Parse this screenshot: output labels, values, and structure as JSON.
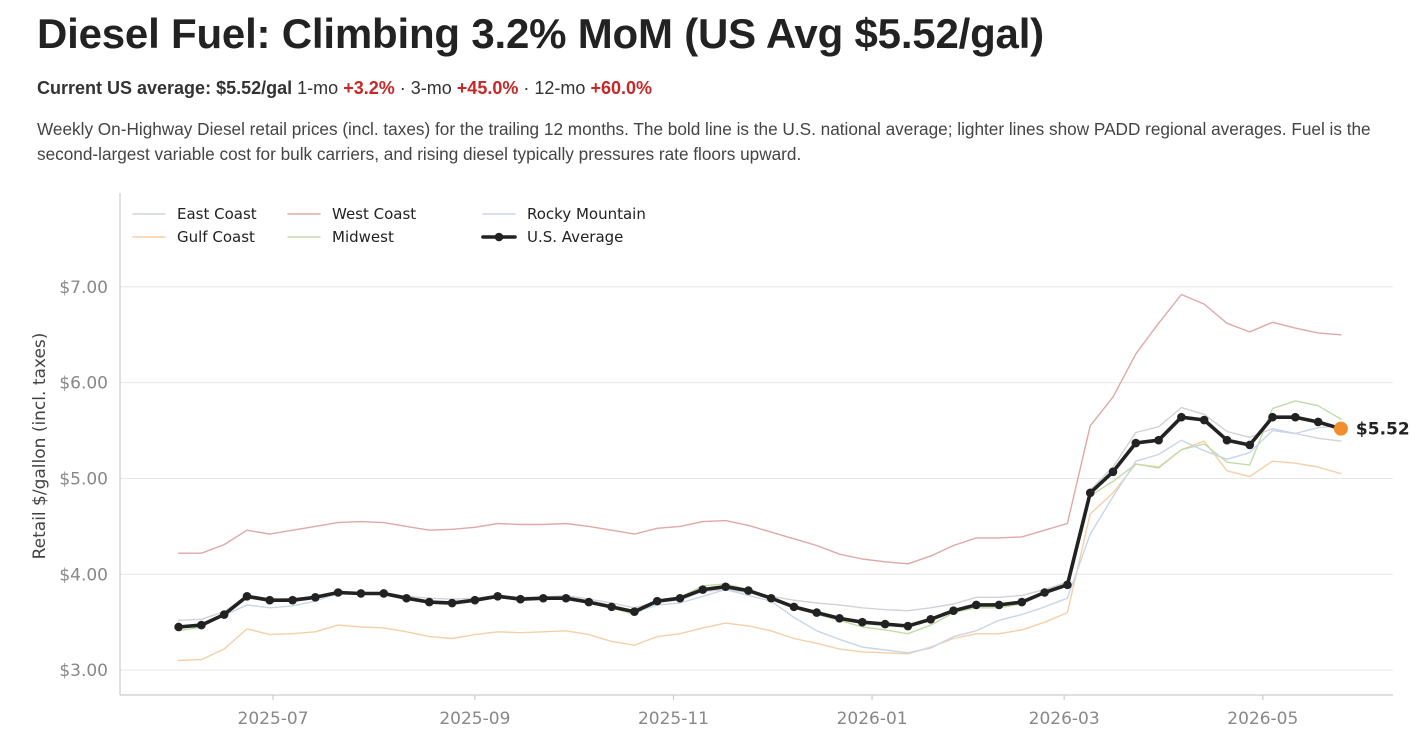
{
  "header": {
    "title": "Diesel Fuel: Climbing 3.2% MoM (US Avg $5.52/gal)",
    "current_label": "Current US average:",
    "current_value": "$5.52/gal",
    "m1_label": "1-mo",
    "m1_value": "+3.2%",
    "sep1": "·",
    "m3_label": "3-mo",
    "m3_value": "+45.0%",
    "sep2": "·",
    "m12_label": "12-mo",
    "m12_value": "+60.0%",
    "description": "Weekly On-Highway Diesel retail prices (incl. taxes) for the trailing 12 months. The bold line is the U.S. national average; lighter lines show PADD regional averages. Fuel is the second-largest variable cost for bulk carriers, and rising diesel typically pressures rate floors upward."
  },
  "colors": {
    "us_average": "#222222",
    "latest_marker": "#f28e2b",
    "up_highlight": "#c62828",
    "grid": "#e8e8e8",
    "axis": "#cccccc"
  },
  "chart_data": {
    "type": "line",
    "ylabel": "Retail $/gallon (incl. taxes)",
    "xlabel": "",
    "ylim": [
      2.74,
      7.98
    ],
    "xlim": [
      "2025-05-15",
      "2026-06-10"
    ],
    "yticks": [
      3.0,
      4.0,
      5.0,
      6.0,
      7.0
    ],
    "ytick_labels": [
      "$3.00",
      "$4.00",
      "$5.00",
      "$6.00",
      "$7.00"
    ],
    "xticks": [
      "2025-07-01",
      "2025-09-01",
      "2025-11-01",
      "2026-01-01",
      "2026-03-01",
      "2026-05-01"
    ],
    "xtick_labels": [
      "2025-07",
      "2025-09",
      "2025-11",
      "2026-01",
      "2026-03",
      "2026-05"
    ],
    "grid": "horizontal",
    "legend_position": "top-left",
    "latest_label": "$5.52",
    "latest_value": 5.52,
    "x": [
      "2025-06-02",
      "2025-06-09",
      "2025-06-16",
      "2025-06-23",
      "2025-06-30",
      "2025-07-07",
      "2025-07-14",
      "2025-07-21",
      "2025-07-28",
      "2025-08-04",
      "2025-08-11",
      "2025-08-18",
      "2025-08-25",
      "2025-09-01",
      "2025-09-08",
      "2025-09-15",
      "2025-09-22",
      "2025-09-29",
      "2025-10-06",
      "2025-10-13",
      "2025-10-20",
      "2025-10-27",
      "2025-11-03",
      "2025-11-10",
      "2025-11-17",
      "2025-11-24",
      "2025-12-01",
      "2025-12-08",
      "2025-12-15",
      "2025-12-22",
      "2025-12-29",
      "2026-01-05",
      "2026-01-12",
      "2026-01-19",
      "2026-01-26",
      "2026-02-02",
      "2026-02-09",
      "2026-02-16",
      "2026-02-23",
      "2026-03-02",
      "2026-03-09",
      "2026-03-16",
      "2026-03-23",
      "2026-03-30",
      "2026-04-06",
      "2026-04-13",
      "2026-04-20",
      "2026-04-27",
      "2026-05-04",
      "2026-05-11",
      "2026-05-18",
      "2026-05-25"
    ],
    "series": [
      {
        "name": "East Coast",
        "color": "#cfd3d8",
        "width": 1.4,
        "markers": false,
        "values": [
          3.52,
          3.53,
          3.61,
          3.78,
          3.73,
          3.75,
          3.76,
          3.8,
          3.81,
          3.81,
          3.77,
          3.75,
          3.74,
          3.75,
          3.78,
          3.76,
          3.76,
          3.78,
          3.74,
          3.7,
          3.65,
          3.71,
          3.73,
          3.82,
          3.84,
          3.81,
          3.77,
          3.73,
          3.7,
          3.68,
          3.65,
          3.63,
          3.62,
          3.65,
          3.69,
          3.76,
          3.76,
          3.78,
          3.84,
          3.92,
          4.88,
          5.12,
          5.48,
          5.54,
          5.74,
          5.67,
          5.49,
          5.43,
          5.52,
          5.47,
          5.42,
          5.39
        ]
      },
      {
        "name": "Gulf Coast",
        "color": "#f5cfa8",
        "width": 1.4,
        "markers": false,
        "values": [
          3.1,
          3.11,
          3.22,
          3.43,
          3.37,
          3.38,
          3.4,
          3.47,
          3.45,
          3.44,
          3.4,
          3.35,
          3.33,
          3.37,
          3.4,
          3.39,
          3.4,
          3.41,
          3.37,
          3.3,
          3.26,
          3.35,
          3.38,
          3.44,
          3.49,
          3.46,
          3.41,
          3.33,
          3.28,
          3.22,
          3.19,
          3.18,
          3.17,
          3.24,
          3.33,
          3.38,
          3.38,
          3.42,
          3.5,
          3.6,
          4.63,
          4.85,
          5.15,
          5.12,
          5.3,
          5.39,
          5.08,
          5.02,
          5.18,
          5.16,
          5.12,
          5.05
        ]
      },
      {
        "name": "West Coast",
        "color": "#e0a8a8",
        "width": 1.4,
        "markers": false,
        "values": [
          4.22,
          4.22,
          4.31,
          4.46,
          4.42,
          4.46,
          4.5,
          4.54,
          4.55,
          4.54,
          4.5,
          4.46,
          4.47,
          4.49,
          4.53,
          4.52,
          4.52,
          4.53,
          4.5,
          4.46,
          4.42,
          4.48,
          4.5,
          4.55,
          4.56,
          4.51,
          4.44,
          4.37,
          4.3,
          4.21,
          4.16,
          4.13,
          4.11,
          4.19,
          4.3,
          4.38,
          4.38,
          4.39,
          4.46,
          4.53,
          5.55,
          5.85,
          6.3,
          6.62,
          6.92,
          6.82,
          6.62,
          6.53,
          6.63,
          6.57,
          6.52,
          6.5
        ]
      },
      {
        "name": "Midwest",
        "color": "#c2dca8",
        "width": 1.4,
        "markers": false,
        "values": [
          3.41,
          3.45,
          3.58,
          3.75,
          3.72,
          3.74,
          3.75,
          3.79,
          3.8,
          3.79,
          3.75,
          3.7,
          3.7,
          3.72,
          3.76,
          3.73,
          3.74,
          3.75,
          3.7,
          3.65,
          3.58,
          3.72,
          3.76,
          3.88,
          3.9,
          3.84,
          3.74,
          3.65,
          3.58,
          3.52,
          3.45,
          3.42,
          3.38,
          3.47,
          3.6,
          3.65,
          3.65,
          3.69,
          3.8,
          3.89,
          4.82,
          4.97,
          5.15,
          5.11,
          5.3,
          5.36,
          5.17,
          5.14,
          5.73,
          5.81,
          5.76,
          5.62
        ]
      },
      {
        "name": "Rocky Mountain",
        "color": "#c8d6e8",
        "width": 1.4,
        "markers": false,
        "values": [
          3.45,
          3.46,
          3.57,
          3.68,
          3.65,
          3.67,
          3.72,
          3.8,
          3.81,
          3.8,
          3.75,
          3.7,
          3.68,
          3.72,
          3.77,
          3.74,
          3.76,
          3.77,
          3.71,
          3.65,
          3.6,
          3.68,
          3.7,
          3.77,
          3.84,
          3.78,
          3.72,
          3.55,
          3.41,
          3.32,
          3.24,
          3.21,
          3.18,
          3.23,
          3.35,
          3.41,
          3.52,
          3.58,
          3.66,
          3.75,
          4.42,
          4.81,
          5.18,
          5.25,
          5.4,
          5.29,
          5.2,
          5.27,
          5.5,
          5.47,
          5.53,
          5.55
        ]
      },
      {
        "name": "U.S. Average",
        "color": "#222222",
        "width": 3.6,
        "markers": true,
        "values": [
          3.45,
          3.47,
          3.58,
          3.77,
          3.73,
          3.73,
          3.76,
          3.81,
          3.8,
          3.8,
          3.75,
          3.71,
          3.7,
          3.73,
          3.77,
          3.74,
          3.75,
          3.75,
          3.71,
          3.66,
          3.61,
          3.72,
          3.75,
          3.84,
          3.87,
          3.83,
          3.75,
          3.66,
          3.6,
          3.54,
          3.5,
          3.48,
          3.46,
          3.53,
          3.62,
          3.68,
          3.68,
          3.71,
          3.81,
          3.89,
          4.85,
          5.07,
          5.37,
          5.4,
          5.64,
          5.61,
          5.4,
          5.35,
          5.64,
          5.64,
          5.59,
          5.52
        ]
      }
    ]
  }
}
